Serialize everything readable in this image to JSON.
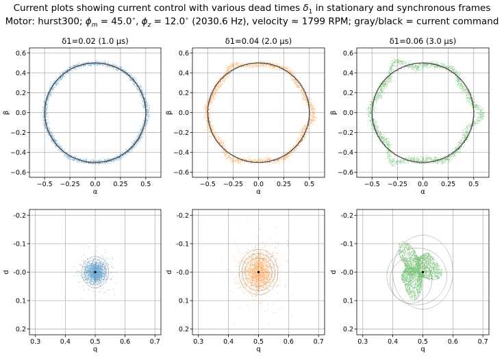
{
  "figure": {
    "title_line1": "Current plots showing current control with various dead times δ₁ in stationary and synchronous frames",
    "title_line2": "Motor: hurst300; ϕm = 45.0°, ϕz = 12.0° (2030.6 Hz), velocity ≈ 1799 RPM; gray/black = current command"
  },
  "chart_data": [
    {
      "type": "scatter",
      "frame": "stationary",
      "title": "δ1=0.02 (1.0 µs)",
      "xlabel": "α",
      "ylabel": "β",
      "xlim": [
        -0.65,
        0.65
      ],
      "ylim": [
        -0.65,
        0.65
      ],
      "xticks": [
        -0.5,
        -0.25,
        0.0,
        0.25,
        0.5
      ],
      "yticks": [
        -0.6,
        -0.4,
        -0.2,
        0.0,
        0.2,
        0.4,
        0.6
      ],
      "command_radius": 0.5,
      "color": "#1f77b4",
      "spread": 0.012,
      "deviation": 0.006,
      "grid": true
    },
    {
      "type": "scatter",
      "frame": "stationary",
      "title": "δ1=0.04 (2.0 µs)",
      "xlabel": "α",
      "ylabel": "β",
      "xlim": [
        -0.65,
        0.65
      ],
      "ylim": [
        -0.65,
        0.65
      ],
      "xticks": [
        -0.5,
        -0.25,
        0.0,
        0.25,
        0.5
      ],
      "yticks": [
        -0.6,
        -0.4,
        -0.2,
        0.0,
        0.2,
        0.4,
        0.6
      ],
      "command_radius": 0.5,
      "color": "#ff7f0e",
      "spread": 0.013,
      "deviation": 0.022,
      "grid": true
    },
    {
      "type": "scatter",
      "frame": "stationary",
      "title": "δ1=0.06 (3.0 µs)",
      "xlabel": "α",
      "ylabel": "β",
      "xlim": [
        -0.65,
        0.65
      ],
      "ylim": [
        -0.65,
        0.65
      ],
      "xticks": [
        -0.5,
        -0.25,
        0.0,
        0.25,
        0.5
      ],
      "yticks": [
        -0.6,
        -0.4,
        -0.2,
        0.0,
        0.2,
        0.4,
        0.6
      ],
      "command_radius": 0.5,
      "color": "#2ca02c",
      "spread": 0.014,
      "deviation": 0.04,
      "grid": true
    },
    {
      "type": "scatter",
      "frame": "synchronous",
      "xlabel": "q",
      "ylabel": "d",
      "xlim": [
        0.28,
        0.72
      ],
      "ylim": [
        0.22,
        -0.22
      ],
      "xticks": [
        0.3,
        0.4,
        0.5,
        0.6,
        0.7
      ],
      "yticks": [
        -0.2,
        -0.1,
        0.0,
        0.1,
        0.2
      ],
      "center": [
        0.5,
        0.0
      ],
      "color": "#1f77b4",
      "radius": [
        0.035,
        0.04
      ],
      "grid": true
    },
    {
      "type": "scatter",
      "frame": "synchronous",
      "xlabel": "q",
      "ylabel": "d",
      "xlim": [
        0.28,
        0.72
      ],
      "ylim": [
        0.22,
        -0.22
      ],
      "xticks": [
        0.3,
        0.4,
        0.5,
        0.6,
        0.7
      ],
      "yticks": [
        -0.2,
        -0.1,
        0.0,
        0.1,
        0.2
      ],
      "center": [
        0.5,
        0.0
      ],
      "color": "#ff7f0e",
      "radius": [
        0.06,
        0.08
      ],
      "grid": true
    },
    {
      "type": "scatter",
      "frame": "synchronous",
      "xlabel": "q",
      "ylabel": "d",
      "xlim": [
        0.28,
        0.72
      ],
      "ylim": [
        0.22,
        -0.22
      ],
      "xticks": [
        0.3,
        0.4,
        0.5,
        0.6,
        0.7
      ],
      "yticks": [
        -0.2,
        -0.1,
        0.0,
        0.1,
        0.2
      ],
      "center": [
        0.5,
        0.0
      ],
      "color": "#2ca02c",
      "radius": [
        0.1,
        0.14
      ],
      "grid": true
    }
  ]
}
